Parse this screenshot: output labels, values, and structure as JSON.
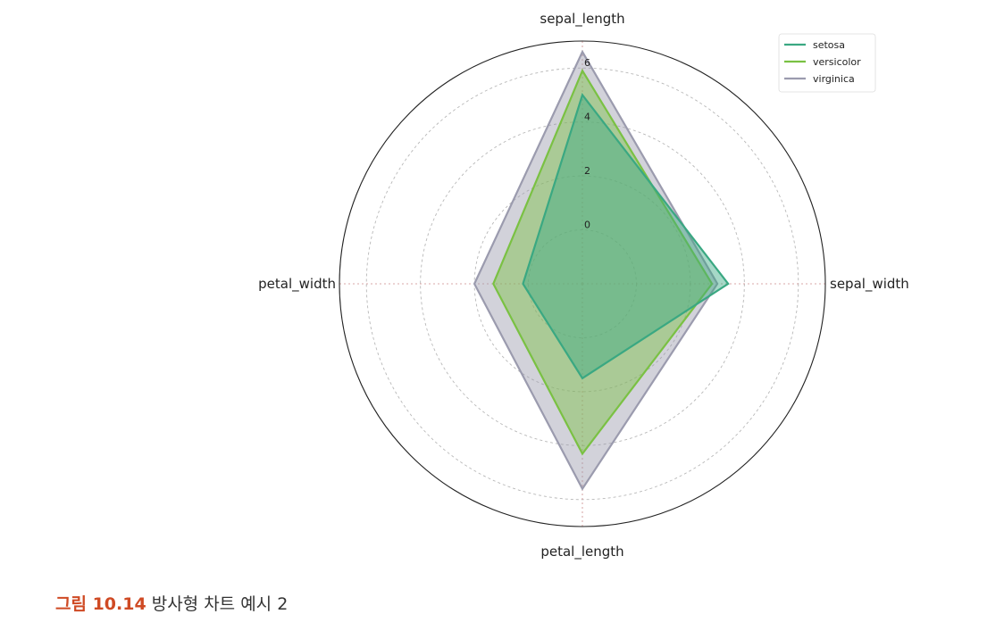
{
  "chart_data": {
    "type": "radar",
    "axes": [
      "sepal_length",
      "sepal_width",
      "petal_length",
      "petal_width"
    ],
    "r_ticks": [
      "0",
      "2",
      "4",
      "6"
    ],
    "r_tick_values": [
      0,
      2,
      4,
      6
    ],
    "rlim": [
      -2,
      7
    ],
    "grid": true,
    "legend_position": "top-right",
    "series": [
      {
        "name": "setosa",
        "values": [
          5.0,
          3.4,
          1.5,
          0.2
        ],
        "color": "#3aa882"
      },
      {
        "name": "versicolor",
        "values": [
          5.9,
          2.8,
          4.3,
          1.3
        ],
        "color": "#7ac143"
      },
      {
        "name": "virginica",
        "values": [
          6.6,
          3.0,
          5.6,
          2.0
        ],
        "color": "#9b9bae"
      }
    ]
  },
  "caption": {
    "label": "그림 10.14",
    "text": " 방사형 차트 예시 2"
  }
}
